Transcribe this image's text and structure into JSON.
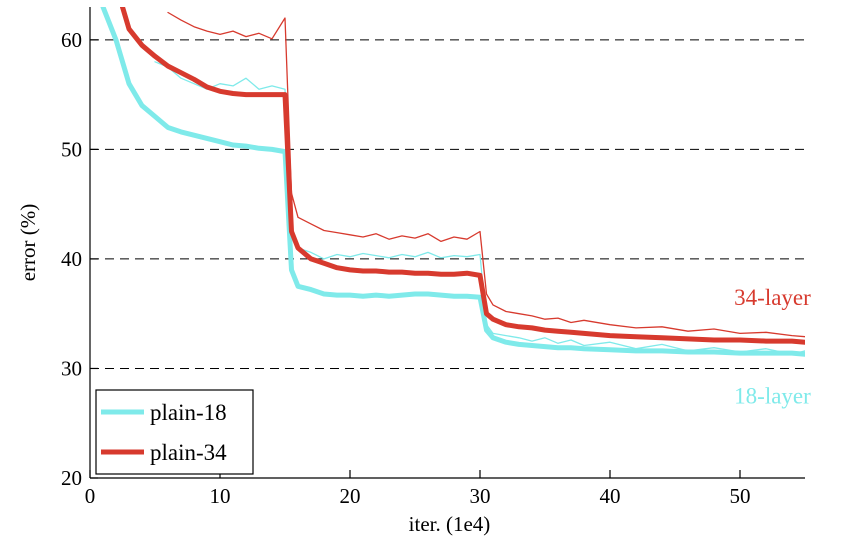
{
  "chart_data": {
    "type": "line",
    "xlabel": "iter. (1e4)",
    "ylabel": "error (%)",
    "xlim": [
      0,
      55
    ],
    "ylim": [
      20,
      63
    ],
    "xticks": [
      0,
      10,
      20,
      30,
      40,
      50
    ],
    "yticks": [
      20,
      30,
      40,
      50,
      60
    ],
    "grid": "dashed horizontal at y ticks",
    "legend": {
      "placement": "bottom-left",
      "entries": [
        {
          "label": "plain-18",
          "color": "#7FEAEA"
        },
        {
          "label": "plain-34",
          "color": "#D73A2E"
        }
      ]
    },
    "annotations": [
      {
        "text": "34-layer",
        "color": "#D73A2E",
        "x": 52.5,
        "y": 35.8
      },
      {
        "text": "18-layer",
        "color": "#7FEAEA",
        "x": 52.5,
        "y": 26.8
      }
    ],
    "series": [
      {
        "name": "plain-18 (train)",
        "color": "#7FEAEA",
        "style": "thick",
        "x": [
          1,
          2,
          3,
          4,
          5,
          6,
          7,
          8,
          9,
          10,
          11,
          12,
          13,
          14,
          15,
          15.5,
          16,
          17,
          18,
          19,
          20,
          21,
          22,
          23,
          24,
          25,
          26,
          27,
          28,
          29,
          30,
          30.5,
          31,
          32,
          33,
          34,
          35,
          36,
          37,
          38,
          40,
          42,
          44,
          46,
          48,
          50,
          52,
          54,
          55
        ],
        "y": [
          63,
          60,
          56,
          54,
          53,
          52,
          51.6,
          51.3,
          51,
          50.7,
          50.4,
          50.3,
          50.1,
          50,
          49.8,
          39,
          37.5,
          37.2,
          36.8,
          36.7,
          36.7,
          36.6,
          36.7,
          36.6,
          36.7,
          36.8,
          36.8,
          36.7,
          36.6,
          36.6,
          36.5,
          33.5,
          32.8,
          32.4,
          32.2,
          32.1,
          32.0,
          31.9,
          31.9,
          31.8,
          31.7,
          31.6,
          31.6,
          31.5,
          31.5,
          31.4,
          31.4,
          31.4,
          31.3
        ]
      },
      {
        "name": "plain-34 (train)",
        "color": "#D73A2E",
        "style": "thick",
        "x": [
          2.5,
          3,
          4,
          5,
          6,
          7,
          8,
          9,
          10,
          11,
          12,
          13,
          14,
          15,
          15.5,
          16,
          17,
          18,
          19,
          20,
          21,
          22,
          23,
          24,
          25,
          26,
          27,
          28,
          29,
          30,
          30.5,
          31,
          32,
          33,
          34,
          35,
          36,
          37,
          38,
          40,
          42,
          44,
          46,
          48,
          50,
          52,
          54,
          55
        ],
        "y": [
          63,
          61,
          59.5,
          58.5,
          57.6,
          57,
          56.4,
          55.7,
          55.3,
          55.1,
          55,
          55,
          55,
          55,
          42.5,
          41,
          40,
          39.6,
          39.2,
          39,
          38.9,
          38.9,
          38.8,
          38.8,
          38.7,
          38.7,
          38.6,
          38.6,
          38.7,
          38.5,
          35,
          34.5,
          34,
          33.8,
          33.7,
          33.5,
          33.4,
          33.3,
          33.2,
          33.0,
          32.9,
          32.8,
          32.7,
          32.6,
          32.6,
          32.5,
          32.5,
          32.4
        ]
      },
      {
        "name": "plain-18 (val)",
        "color": "#7FEAEA",
        "style": "thin",
        "x": [
          5,
          6,
          7,
          8,
          9,
          10,
          11,
          12,
          13,
          14,
          15,
          15.5,
          16,
          17,
          18,
          19,
          20,
          21,
          22,
          23,
          24,
          25,
          26,
          27,
          28,
          29,
          30,
          30.5,
          31,
          32,
          33,
          34,
          35,
          36,
          37,
          38,
          40,
          42,
          44,
          46,
          48,
          50,
          52,
          54,
          55
        ],
        "y": [
          58,
          57.5,
          56.5,
          56,
          55.5,
          56,
          55.8,
          56.5,
          55.5,
          55.8,
          55.5,
          43,
          41,
          40.6,
          40,
          40.4,
          40.2,
          40.5,
          40.3,
          40.1,
          40.4,
          40.2,
          40.6,
          40.1,
          40.3,
          40.2,
          40.4,
          34,
          33.2,
          33.0,
          32.8,
          32.5,
          32.8,
          32.3,
          32.6,
          32.1,
          32.4,
          31.8,
          32.2,
          31.6,
          31.9,
          31.5,
          31.8,
          31.3,
          31.6
        ]
      },
      {
        "name": "plain-34 (val)",
        "color": "#D73A2E",
        "style": "thin",
        "x": [
          6,
          7,
          8,
          9,
          10,
          11,
          12,
          13,
          14,
          15,
          15.5,
          16,
          17,
          18,
          19,
          20,
          21,
          22,
          23,
          24,
          25,
          26,
          27,
          28,
          29,
          30,
          30.5,
          31,
          32,
          33,
          34,
          35,
          36,
          37,
          38,
          40,
          42,
          44,
          46,
          48,
          50,
          52,
          54,
          55
        ],
        "y": [
          62.5,
          61.8,
          61.2,
          60.8,
          60.5,
          60.8,
          60.3,
          60.6,
          60.1,
          62,
          46,
          43.8,
          43.2,
          42.6,
          42.4,
          42.2,
          42.0,
          42.3,
          41.8,
          42.1,
          41.9,
          42.3,
          41.6,
          42.0,
          41.8,
          42.5,
          36.8,
          35.8,
          35.2,
          35.0,
          34.8,
          34.5,
          34.6,
          34.2,
          34.4,
          34.0,
          33.7,
          33.8,
          33.4,
          33.6,
          33.2,
          33.3,
          33.0,
          32.9
        ]
      }
    ]
  }
}
